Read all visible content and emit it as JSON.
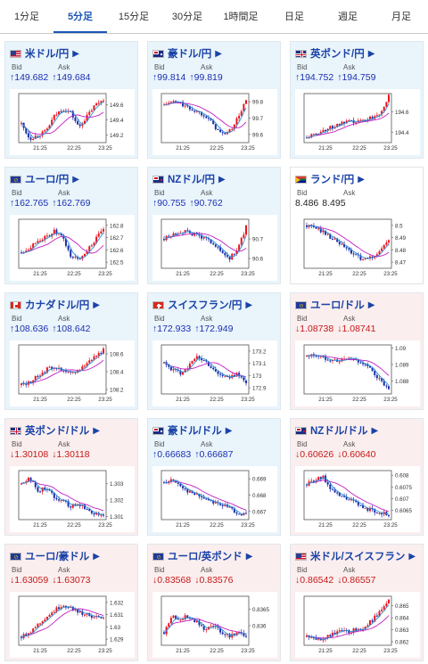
{
  "tabs": [
    {
      "label": "1分足",
      "active": false
    },
    {
      "label": "5分足",
      "active": true
    },
    {
      "label": "15分足",
      "active": false
    },
    {
      "label": "30分足",
      "active": false
    },
    {
      "label": "1時間足",
      "active": false
    },
    {
      "label": "日足",
      "active": false
    },
    {
      "label": "週足",
      "active": false
    },
    {
      "label": "月足",
      "active": false
    }
  ],
  "bid_label": "Bid",
  "ask_label": "Ask",
  "x_ticks": [
    "21:25",
    "22:25",
    "23:25"
  ],
  "colors": {
    "up": "#e9f4fb",
    "down": "#fbeeee",
    "bull": "#e8141e",
    "bear": "#1a2ea8",
    "ma1": "#c21ec2",
    "ma2": "#2b8fd6"
  },
  "cards": [
    {
      "name": "米ドル/円",
      "flag": "us",
      "dir": "up",
      "bid": "149.682",
      "ask": "149.684",
      "yticks": [
        "149.6",
        "149.4",
        "149.2"
      ],
      "chart_data": {
        "type": "candlestick",
        "ylim": [
          149.1,
          149.75
        ],
        "trend": [
          149.35,
          149.15,
          149.2,
          149.25,
          149.45,
          149.55,
          149.5,
          149.3,
          149.45,
          149.6,
          149.68
        ]
      }
    },
    {
      "name": "豪ドル/円",
      "flag": "au",
      "dir": "up",
      "bid": "99.814",
      "ask": "99.819",
      "yticks": [
        "99.8",
        "99.7",
        "99.6"
      ],
      "chart_data": {
        "type": "candlestick",
        "ylim": [
          99.55,
          99.85
        ],
        "trend": [
          99.78,
          99.8,
          99.79,
          99.76,
          99.74,
          99.72,
          99.66,
          99.6,
          99.62,
          99.7,
          99.81
        ]
      }
    },
    {
      "name": "英ポンド/円",
      "flag": "gb",
      "dir": "up",
      "bid": "194.752",
      "ask": "194.759",
      "yticks": [
        "194.6",
        "194.4"
      ],
      "chart_data": {
        "type": "candlestick",
        "ylim": [
          194.3,
          194.78
        ],
        "trend": [
          194.35,
          194.38,
          194.42,
          194.45,
          194.48,
          194.5,
          194.5,
          194.52,
          194.55,
          194.6,
          194.75
        ]
      }
    },
    {
      "name": "ユーロ/円",
      "flag": "eu",
      "dir": "up",
      "bid": "162.765",
      "ask": "162.769",
      "yticks": [
        "162.8",
        "162.7",
        "162.6",
        "162.5"
      ],
      "chart_data": {
        "type": "candlestick",
        "ylim": [
          162.45,
          162.85
        ],
        "trend": [
          162.58,
          162.62,
          162.68,
          162.7,
          162.75,
          162.7,
          162.55,
          162.52,
          162.6,
          162.68,
          162.77
        ]
      }
    },
    {
      "name": "NZドル/円",
      "flag": "nz",
      "dir": "up",
      "bid": "90.755",
      "ask": "90.762",
      "yticks": [
        "90.7",
        "90.6"
      ],
      "chart_data": {
        "type": "candlestick",
        "ylim": [
          90.55,
          90.8
        ],
        "trend": [
          90.7,
          90.72,
          90.74,
          90.73,
          90.72,
          90.7,
          90.68,
          90.63,
          90.6,
          90.65,
          90.76
        ]
      }
    },
    {
      "name": "ランド/円",
      "flag": "za",
      "dir": "flat",
      "bid": "8.486",
      "ask": "8.495",
      "yticks": [
        "8.5",
        "8.49",
        "8.48",
        "8.47"
      ],
      "chart_data": {
        "type": "candlestick",
        "ylim": [
          8.465,
          8.505
        ],
        "trend": [
          8.5,
          8.498,
          8.495,
          8.49,
          8.485,
          8.48,
          8.475,
          8.472,
          8.474,
          8.48,
          8.488
        ]
      }
    },
    {
      "name": "カナダドル/円",
      "flag": "ca",
      "dir": "up",
      "bid": "108.636",
      "ask": "108.642",
      "yticks": [
        "108.6",
        "108.4",
        "108.2"
      ],
      "chart_data": {
        "type": "candlestick",
        "ylim": [
          108.15,
          108.7
        ],
        "trend": [
          108.25,
          108.28,
          108.35,
          108.42,
          108.46,
          108.4,
          108.38,
          108.42,
          108.5,
          108.58,
          108.64
        ]
      }
    },
    {
      "name": "スイスフラン/円",
      "flag": "ch",
      "dir": "up",
      "bid": "172.933",
      "ask": "172.949",
      "yticks": [
        "173.2",
        "173.1",
        "173",
        "172.9"
      ],
      "chart_data": {
        "type": "candlestick",
        "ylim": [
          172.85,
          173.25
        ],
        "trend": [
          173.1,
          173.05,
          173.02,
          173.08,
          173.15,
          173.12,
          173.05,
          173.0,
          172.98,
          173.02,
          172.94
        ]
      }
    },
    {
      "name": "ユーロ/ドル",
      "flag": "eu",
      "dir": "down",
      "bid": "1.08738",
      "ask": "1.08741",
      "yticks": [
        "1.09",
        "1.089",
        "1.088"
      ],
      "chart_data": {
        "type": "candlestick",
        "ylim": [
          1.0872,
          1.0902
        ],
        "trend": [
          1.0895,
          1.0896,
          1.0894,
          1.0893,
          1.0892,
          1.0894,
          1.0893,
          1.089,
          1.0886,
          1.088,
          1.0874
        ]
      }
    },
    {
      "name": "英ポンド/ドル",
      "flag": "gb",
      "dir": "down",
      "bid": "1.30108",
      "ask": "1.30118",
      "yticks": [
        "1.303",
        "1.302",
        "1.301"
      ],
      "chart_data": {
        "type": "candlestick",
        "ylim": [
          1.3008,
          1.3038
        ],
        "trend": [
          1.303,
          1.3034,
          1.3025,
          1.3028,
          1.3022,
          1.302,
          1.3016,
          1.3018,
          1.3014,
          1.3012,
          1.3011
        ]
      }
    },
    {
      "name": "豪ドル/ドル",
      "flag": "au",
      "dir": "up",
      "bid": "0.66683",
      "ask": "0.66687",
      "yticks": [
        "0.669",
        "0.668",
        "0.667"
      ],
      "chart_data": {
        "type": "candlestick",
        "ylim": [
          0.6665,
          0.6695
        ],
        "trend": [
          0.6688,
          0.6689,
          0.6686,
          0.6682,
          0.668,
          0.6678,
          0.6676,
          0.6674,
          0.6672,
          0.6669,
          0.6668
        ]
      }
    },
    {
      "name": "NZドル/ドル",
      "flag": "nz",
      "dir": "down",
      "bid": "0.60626",
      "ask": "0.60640",
      "yticks": [
        "0.608",
        "0.6075",
        "0.607",
        "0.6065"
      ],
      "chart_data": {
        "type": "candlestick",
        "ylim": [
          0.6061,
          0.6082
        ],
        "trend": [
          0.6076,
          0.6078,
          0.6079,
          0.6074,
          0.6071,
          0.607,
          0.6068,
          0.6066,
          0.6065,
          0.6064,
          0.6063
        ]
      }
    },
    {
      "name": "ユーロ/豪ドル",
      "flag": "eu",
      "dir": "down",
      "bid": "1.63059",
      "ask": "1.63073",
      "yticks": [
        "1.632",
        "1.631",
        "1.63",
        "1.629"
      ],
      "chart_data": {
        "type": "candlestick",
        "ylim": [
          1.6285,
          1.6325
        ],
        "trend": [
          1.6292,
          1.6296,
          1.6302,
          1.6308,
          1.6313,
          1.6318,
          1.6316,
          1.6312,
          1.631,
          1.6308,
          1.6306
        ]
      }
    },
    {
      "name": "ユーロ/英ポンド",
      "flag": "eu",
      "dir": "down",
      "bid": "0.83568",
      "ask": "0.83576",
      "yticks": [
        "0.8365",
        "0.836"
      ],
      "chart_data": {
        "type": "candlestick",
        "ylim": [
          0.8354,
          0.8369
        ],
        "trend": [
          0.8358,
          0.8363,
          0.8362,
          0.8363,
          0.8361,
          0.8359,
          0.836,
          0.8358,
          0.8357,
          0.8358,
          0.8357
        ]
      }
    },
    {
      "name": "米ドル/スイスフラン",
      "flag": "us",
      "dir": "down",
      "bid": "0.86542",
      "ask": "0.86557",
      "yticks": [
        "0.865",
        "0.864",
        "0.863",
        "0.862"
      ],
      "chart_data": {
        "type": "candlestick",
        "ylim": [
          0.8617,
          0.8658
        ],
        "trend": [
          0.8624,
          0.8622,
          0.8623,
          0.8626,
          0.8629,
          0.8628,
          0.863,
          0.8632,
          0.8638,
          0.8646,
          0.8654
        ]
      }
    }
  ]
}
